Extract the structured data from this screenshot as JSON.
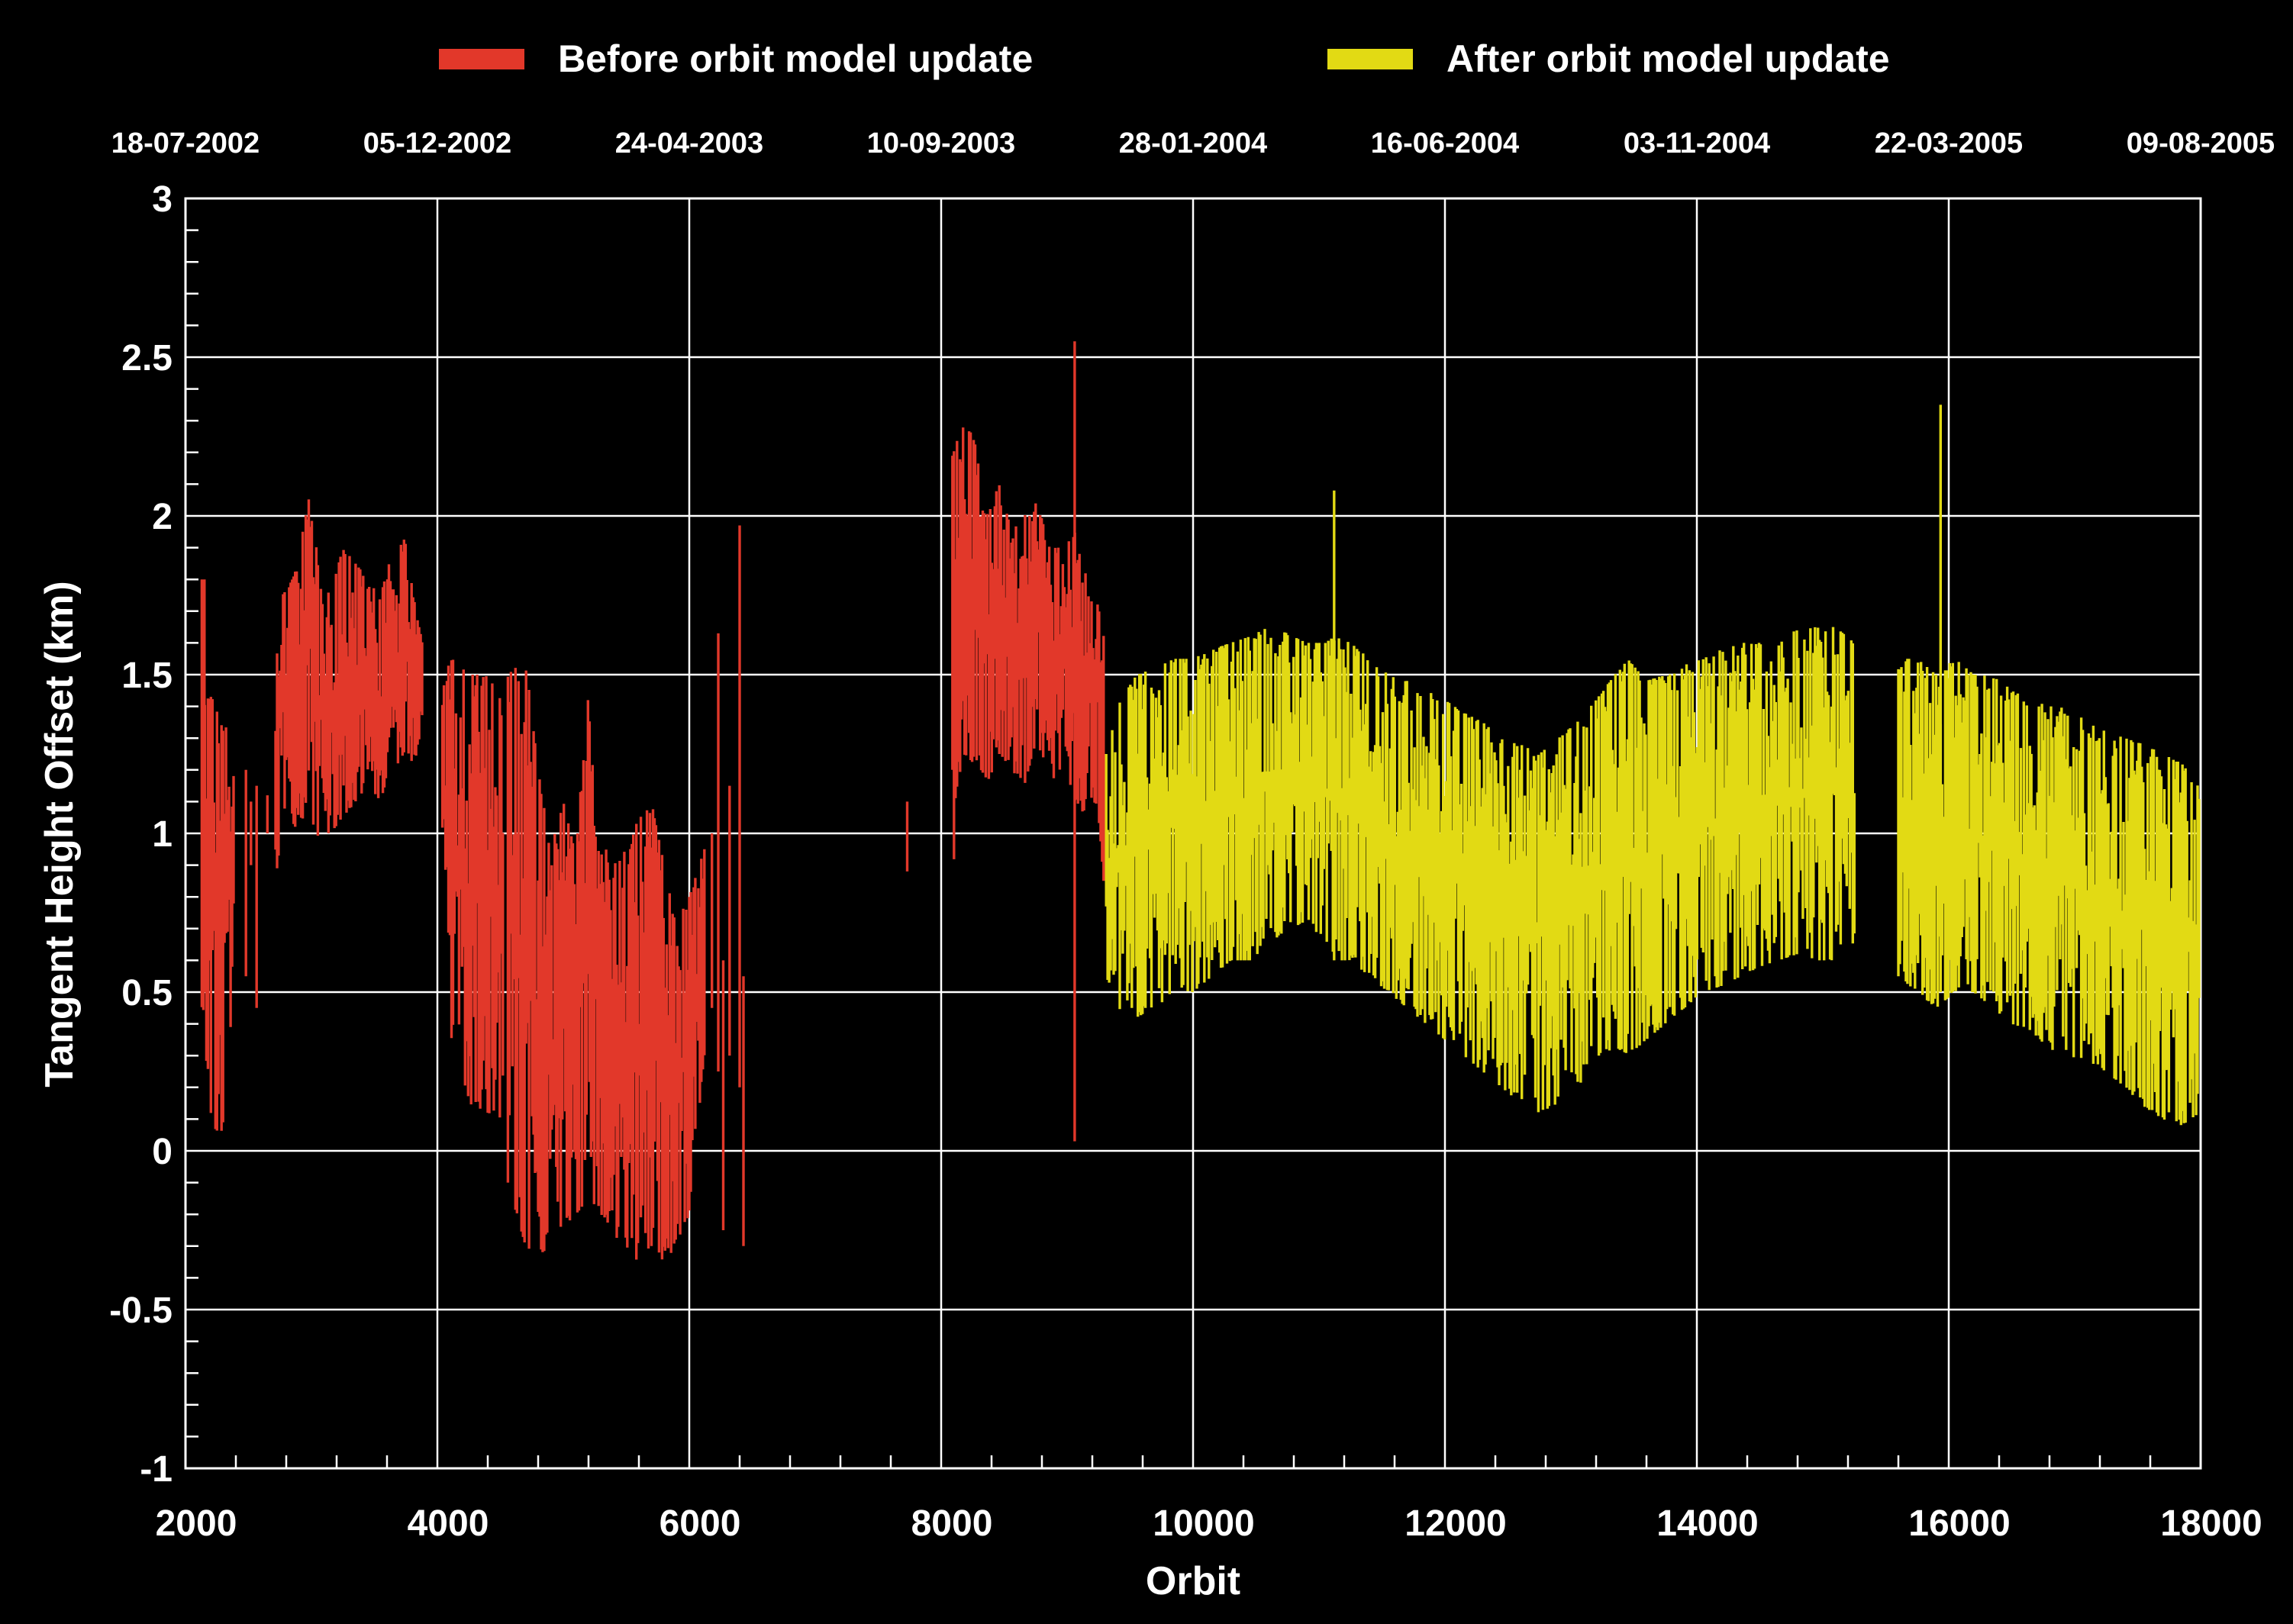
{
  "legend": [
    {
      "label": "Before orbit model update",
      "color": "#e2382a"
    },
    {
      "label": "After orbit model update",
      "color": "#e2da14"
    }
  ],
  "axes": {
    "xlabel": "Orbit",
    "ylabel": "Tangent Height Offset (km)",
    "top_dates": [
      "18-07-2002",
      "05-12-2002",
      "24-04-2003",
      "10-09-2003",
      "28-01-2004",
      "16-06-2004",
      "03-11-2004",
      "22-03-2005",
      "09-08-2005"
    ],
    "x_ticks": [
      "2000",
      "4000",
      "6000",
      "8000",
      "10000",
      "12000",
      "14000",
      "16000",
      "18000"
    ],
    "y_ticks": [
      "3",
      "2.5",
      "2",
      "1.5",
      "1",
      "0.5",
      "0",
      "-0.5",
      "-1"
    ]
  },
  "chart_data": {
    "type": "line",
    "title": "",
    "xlabel": "Orbit",
    "ylabel": "Tangent Height Offset (km)",
    "xlim": [
      2000,
      18000
    ],
    "ylim": [
      -1,
      3
    ],
    "x_major_step": 2000,
    "x_minor_step": 400,
    "y_major_step": 0.5,
    "y_minor_step": 0.1,
    "grid": true,
    "background": "#000000",
    "grid_color": "#ffffff",
    "top_axis_dates": [
      "18-07-2002",
      "05-12-2002",
      "24-04-2003",
      "10-09-2003",
      "28-01-2004",
      "16-06-2004",
      "03-11-2004",
      "22-03-2005",
      "09-08-2005"
    ],
    "legend_position": "top",
    "series": [
      {
        "name": "Before orbit model update",
        "color": "#e2382a",
        "style": "noisy-envelope",
        "segments": [
          {
            "points": [
              [
                2130,
                0.45,
                1.8
              ],
              [
                2170,
                0.05,
                1.5
              ],
              [
                2230,
                0.07,
                1.4
              ],
              [
                2290,
                0.05,
                1.35
              ],
              [
                2390,
                0.55,
                1.3
              ]
            ]
          },
          {
            "points": [
              [
                2715,
                0.85,
                1.5
              ],
              [
                2760,
                1.0,
                1.75
              ],
              [
                2830,
                1.05,
                1.8
              ],
              [
                2900,
                1.0,
                1.85
              ],
              [
                2990,
                1.05,
                2.15
              ],
              [
                3060,
                0.95,
                1.8
              ],
              [
                3150,
                1.0,
                1.75
              ],
              [
                3250,
                1.05,
                1.9
              ],
              [
                3350,
                1.1,
                1.85
              ],
              [
                3450,
                1.15,
                1.8
              ],
              [
                3550,
                1.1,
                1.75
              ],
              [
                3650,
                1.2,
                1.9
              ],
              [
                3740,
                1.25,
                1.93
              ],
              [
                3810,
                1.2,
                1.75
              ],
              [
                3880,
                1.35,
                1.6
              ]
            ]
          },
          {
            "points": [
              [
                4040,
                0.85,
                1.5
              ],
              [
                4120,
                0.3,
                1.55
              ],
              [
                4250,
                0.15,
                1.5
              ],
              [
                4400,
                0.12,
                1.5
              ],
              [
                4530,
                0.1,
                1.4
              ]
            ]
          },
          {
            "points": [
              [
                4560,
                -0.1,
                1.5
              ],
              [
                4700,
                -0.3,
                1.55
              ],
              [
                4800,
                -0.33,
                1.2
              ],
              [
                4900,
                -0.3,
                0.95
              ],
              [
                5000,
                -0.25,
                1.1
              ],
              [
                5100,
                -0.2,
                0.95
              ],
              [
                5200,
                -0.15,
                1.45
              ],
              [
                5300,
                -0.2,
                1.0
              ],
              [
                5400,
                -0.25,
                0.9
              ],
              [
                5500,
                -0.35,
                0.95
              ],
              [
                5600,
                -0.35,
                1.05
              ],
              [
                5700,
                -0.3,
                1.1
              ],
              [
                5800,
                -0.35,
                0.9
              ],
              [
                5900,
                -0.3,
                0.75
              ],
              [
                6000,
                -0.2,
                0.8
              ],
              [
                6120,
                0.3,
                0.95
              ]
            ]
          },
          {
            "points": [
              [
                8090,
                0.85,
                2.2
              ],
              [
                8160,
                1.25,
                2.3
              ],
              [
                8260,
                1.2,
                2.25
              ],
              [
                8360,
                1.15,
                2.0
              ],
              [
                8460,
                1.25,
                2.1
              ],
              [
                8560,
                1.2,
                1.95
              ],
              [
                8660,
                1.15,
                2.0
              ],
              [
                8760,
                1.3,
                2.05
              ],
              [
                8860,
                1.15,
                1.9
              ],
              [
                8960,
                1.2,
                1.9
              ],
              [
                9060,
                1.1,
                1.95
              ],
              [
                9160,
                1.05,
                1.8
              ],
              [
                9240,
                1.1,
                1.75
              ],
              [
                9300,
                0.8,
                1.6
              ]
            ]
          }
        ],
        "spikes": [
          [
            2150,
            0.5,
            1.8
          ],
          [
            2480,
            0.55,
            1.2
          ],
          [
            2520,
            0.9,
            1.1
          ],
          [
            2565,
            0.45,
            1.15
          ],
          [
            2650,
            1.0,
            1.12
          ],
          [
            6180,
            0.45,
            1.0
          ],
          [
            6230,
            0.25,
            1.63
          ],
          [
            6270,
            -0.25,
            0.6
          ],
          [
            6320,
            0.3,
            1.15
          ],
          [
            6400,
            0.2,
            1.97
          ],
          [
            6430,
            -0.3,
            0.55
          ],
          [
            7730,
            0.88,
            1.1
          ],
          [
            9060,
            0.03,
            2.55
          ]
        ]
      },
      {
        "name": "After orbit model update",
        "color": "#e2da14",
        "style": "noisy-envelope",
        "segments": [
          {
            "points": [
              [
                9310,
                0.5,
                1.25
              ],
              [
                9400,
                0.45,
                1.4
              ],
              [
                9550,
                0.42,
                1.5
              ],
              [
                9700,
                0.45,
                1.52
              ],
              [
                9850,
                0.5,
                1.55
              ],
              [
                10000,
                0.5,
                1.55
              ],
              [
                10150,
                0.55,
                1.58
              ],
              [
                10300,
                0.6,
                1.6
              ],
              [
                10450,
                0.6,
                1.62
              ],
              [
                10600,
                0.65,
                1.65
              ],
              [
                10750,
                0.7,
                1.63
              ],
              [
                10900,
                0.72,
                1.6
              ],
              [
                11050,
                0.65,
                1.6
              ],
              [
                11120,
                0.6,
                1.62
              ],
              [
                11250,
                0.6,
                1.6
              ],
              [
                11400,
                0.55,
                1.55
              ],
              [
                11550,
                0.5,
                1.5
              ],
              [
                11700,
                0.45,
                1.48
              ],
              [
                11850,
                0.4,
                1.45
              ],
              [
                12000,
                0.35,
                1.42
              ],
              [
                12150,
                0.3,
                1.38
              ],
              [
                12300,
                0.25,
                1.35
              ],
              [
                12450,
                0.2,
                1.3
              ],
              [
                12600,
                0.15,
                1.28
              ],
              [
                12750,
                0.12,
                1.25
              ],
              [
                12900,
                0.15,
                1.3
              ],
              [
                13050,
                0.2,
                1.35
              ],
              [
                13200,
                0.28,
                1.42
              ],
              [
                13350,
                0.33,
                1.5
              ],
              [
                13450,
                0.3,
                1.55
              ],
              [
                13600,
                0.35,
                1.48
              ],
              [
                13750,
                0.4,
                1.5
              ],
              [
                13900,
                0.45,
                1.53
              ],
              [
                14050,
                0.5,
                1.55
              ],
              [
                14200,
                0.52,
                1.58
              ],
              [
                14350,
                0.55,
                1.6
              ],
              [
                14500,
                0.58,
                1.6
              ],
              [
                14650,
                0.6,
                1.62
              ],
              [
                14800,
                0.62,
                1.64
              ],
              [
                14950,
                0.6,
                1.65
              ],
              [
                15100,
                0.6,
                1.65
              ],
              [
                15250,
                0.65,
                1.6
              ]
            ]
          },
          {
            "points": [
              [
                15600,
                0.55,
                1.55
              ],
              [
                15750,
                0.5,
                1.55
              ],
              [
                15900,
                0.45,
                1.5
              ],
              [
                16050,
                0.5,
                1.55
              ],
              [
                16200,
                0.5,
                1.5
              ],
              [
                16350,
                0.45,
                1.5
              ],
              [
                16500,
                0.4,
                1.45
              ],
              [
                16650,
                0.38,
                1.42
              ],
              [
                16800,
                0.32,
                1.4
              ],
              [
                16950,
                0.3,
                1.4
              ],
              [
                17100,
                0.28,
                1.35
              ],
              [
                17250,
                0.25,
                1.32
              ],
              [
                17400,
                0.2,
                1.3
              ],
              [
                17550,
                0.14,
                1.28
              ],
              [
                17700,
                0.1,
                1.25
              ],
              [
                17850,
                0.08,
                1.22
              ],
              [
                17990,
                0.12,
                1.15
              ]
            ]
          }
        ],
        "spikes": [
          [
            11120,
            0.6,
            2.08
          ],
          [
            15935,
            0.5,
            2.35
          ]
        ],
        "gaps": [
          [
            15250,
            15600
          ]
        ]
      }
    ]
  }
}
